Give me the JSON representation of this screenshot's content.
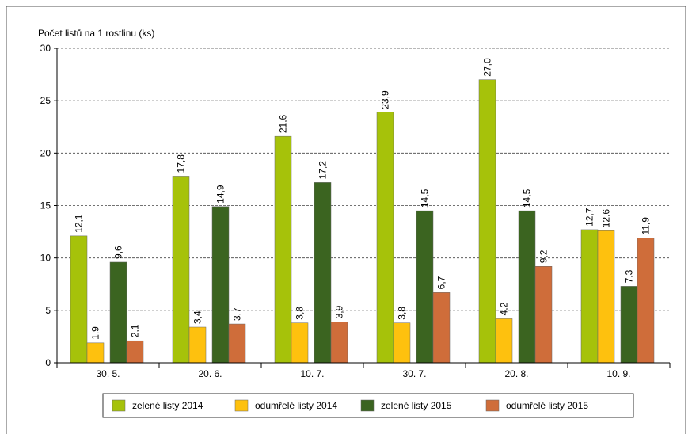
{
  "chart_data": {
    "type": "bar",
    "y_label": "Počet listů na 1 rostlinu (ks)",
    "categories": [
      "30. 5.",
      "20. 6.",
      "10. 7.",
      "30. 7.",
      "20. 8.",
      "10. 9."
    ],
    "series": [
      {
        "name": "zelené listy 2014",
        "color": "#a6c20a",
        "values": [
          12.1,
          17.8,
          21.6,
          23.9,
          27.0,
          12.7
        ],
        "value_labels": [
          "12,1",
          "17,8",
          "21,6",
          "23,9",
          "27,0",
          "12,7"
        ]
      },
      {
        "name": "odumřelé listy 2014",
        "color": "#fec10e",
        "values": [
          1.9,
          3.4,
          3.8,
          3.8,
          4.2,
          12.6
        ],
        "value_labels": [
          "1,9",
          "3,4",
          "3,8",
          "3,8",
          "4,2",
          "12,6"
        ]
      },
      {
        "name": "zelené listy 2015",
        "color": "#3b6420",
        "values": [
          9.6,
          14.9,
          17.2,
          14.5,
          14.5,
          7.3
        ],
        "value_labels": [
          "9,6",
          "14,9",
          "17,2",
          "14,5",
          "14,5",
          "7,3"
        ]
      },
      {
        "name": "odumřelé listy 2015",
        "color": "#cf6d3a",
        "values": [
          2.1,
          3.7,
          3.9,
          6.7,
          9.2,
          11.9
        ],
        "value_labels": [
          "2,1",
          "3,7",
          "3,9",
          "6,7",
          "9,2",
          "11,9"
        ]
      }
    ],
    "ylim": [
      0,
      30
    ],
    "yticks": [
      0,
      5,
      10,
      15,
      20,
      25,
      30
    ],
    "grid": true,
    "legend": "bottom"
  }
}
